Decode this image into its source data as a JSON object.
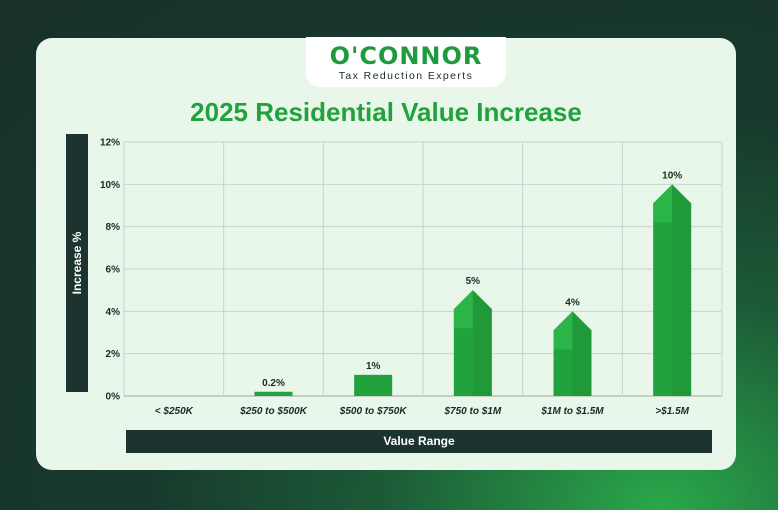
{
  "brand": {
    "name": "O'CONNOR",
    "tagline": "Tax Reduction Experts"
  },
  "chart_data": {
    "type": "bar",
    "title": "2025 Residential Value Increase",
    "xlabel": "Value Range",
    "ylabel": "Increase %",
    "categories": [
      "< $250K",
      "$250 to $500K",
      "$500 to $750K",
      "$750 to $1M",
      "$1M to $1.5M",
      ">$1.5M"
    ],
    "values": [
      0,
      0.2,
      1,
      5,
      4,
      10
    ],
    "data_labels": [
      "",
      "0.2%",
      "1%",
      "5%",
      "4%",
      "10%"
    ],
    "ylim": [
      0,
      12
    ],
    "yticks": [
      "0%",
      "2%",
      "4%",
      "6%",
      "8%",
      "10%",
      "12%"
    ],
    "grid": true,
    "colors": {
      "bar": "#22a23d",
      "bar_light": "#33c552",
      "bar_dark": "#1e8f36",
      "panel": "#1c3330"
    }
  }
}
